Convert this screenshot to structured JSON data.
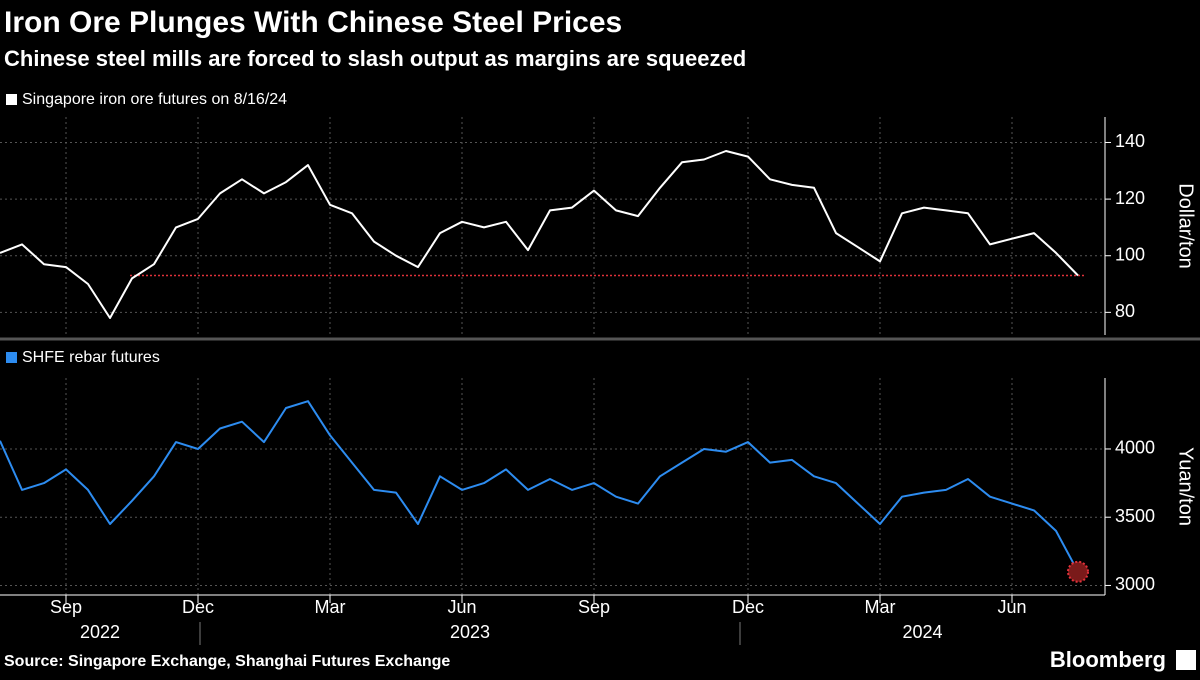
{
  "title": "Iron Ore Plunges With Chinese Steel Prices",
  "subtitle": "Chinese steel mills are forced to slash output as margins are squeezed",
  "source": "Source: Singapore Exchange, Shanghai Futures Exchange",
  "brand": "Bloomberg",
  "chart_data": [
    {
      "type": "line",
      "y_label": "Dollar/ton",
      "series": [
        {
          "name": "Singapore iron ore futures on 8/16/24",
          "color": "#ffffff",
          "values": [
            101,
            104,
            97,
            96,
            90,
            78,
            92,
            97,
            110,
            113,
            122,
            127,
            122,
            126,
            132,
            118,
            115,
            105,
            100,
            96,
            108,
            112,
            110,
            112,
            102,
            116,
            117,
            123,
            116,
            114,
            124,
            133,
            134,
            137,
            135,
            127,
            125,
            124,
            108,
            103,
            98,
            115,
            117,
            116,
            115,
            104,
            106,
            108,
            101,
            93
          ]
        }
      ],
      "reference_line": 93,
      "reference_color": "#e0313a",
      "ylim": [
        72,
        149
      ],
      "yticks": [
        80,
        100,
        120,
        140
      ],
      "grid": true
    },
    {
      "type": "line",
      "y_label": "Yuan/ton",
      "categories": [
        null,
        null,
        null,
        "Sep",
        null,
        null,
        null,
        null,
        null,
        "Dec",
        null,
        null,
        null,
        null,
        null,
        "Mar",
        null,
        null,
        null,
        null,
        null,
        "Jun",
        null,
        null,
        null,
        null,
        null,
        "Sep",
        null,
        null,
        null,
        null,
        null,
        null,
        "Dec",
        null,
        null,
        null,
        null,
        null,
        "Mar",
        null,
        null,
        null,
        null,
        null,
        "Jun",
        null,
        null,
        null
      ],
      "years": [
        "2022",
        "2023",
        "2024"
      ],
      "series": [
        {
          "name": "SHFE rebar futures",
          "color": "#2d8cf0",
          "values": [
            4060,
            3700,
            3750,
            3850,
            3700,
            3450,
            3620,
            3800,
            4050,
            4000,
            4150,
            4200,
            4050,
            4300,
            4350,
            4100,
            3900,
            3700,
            3680,
            3450,
            3800,
            3700,
            3750,
            3850,
            3700,
            3780,
            3700,
            3750,
            3650,
            3600,
            3800,
            3900,
            4000,
            3980,
            4050,
            3900,
            3920,
            3800,
            3750,
            3600,
            3450,
            3650,
            3680,
            3700,
            3780,
            3650,
            3600,
            3550,
            3400,
            3100
          ]
        }
      ],
      "ylim": [
        2930,
        4520
      ],
      "yticks": [
        3000,
        3500,
        4000
      ],
      "grid": true
    }
  ]
}
